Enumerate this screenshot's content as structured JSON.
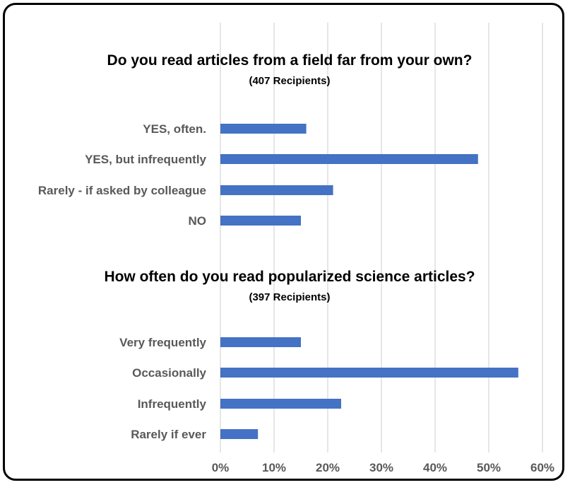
{
  "chart_data": [
    {
      "type": "bar",
      "orientation": "horizontal",
      "title": "Do you read articles from a field far from your own?",
      "subtitle": "(407 Recipients)",
      "categories": [
        "YES, often.",
        "YES, but infrequently",
        "Rarely - if asked by colleague",
        "NO"
      ],
      "values": [
        16,
        48,
        21,
        15
      ],
      "xlim": [
        0,
        60
      ],
      "grid": true,
      "bar_color": "#4472C4"
    },
    {
      "type": "bar",
      "orientation": "horizontal",
      "title": "How often do you read popularized science articles?",
      "subtitle": "(397 Recipients)",
      "categories": [
        "Very frequently",
        "Occasionally",
        "Infrequently",
        "Rarely if ever"
      ],
      "values": [
        15,
        55.5,
        22.5,
        7
      ],
      "xlim": [
        0,
        60
      ],
      "grid": true,
      "bar_color": "#4472C4"
    }
  ],
  "x_axis": {
    "ticks": [
      "0%",
      "10%",
      "20%",
      "30%",
      "40%",
      "50%",
      "60%"
    ]
  }
}
